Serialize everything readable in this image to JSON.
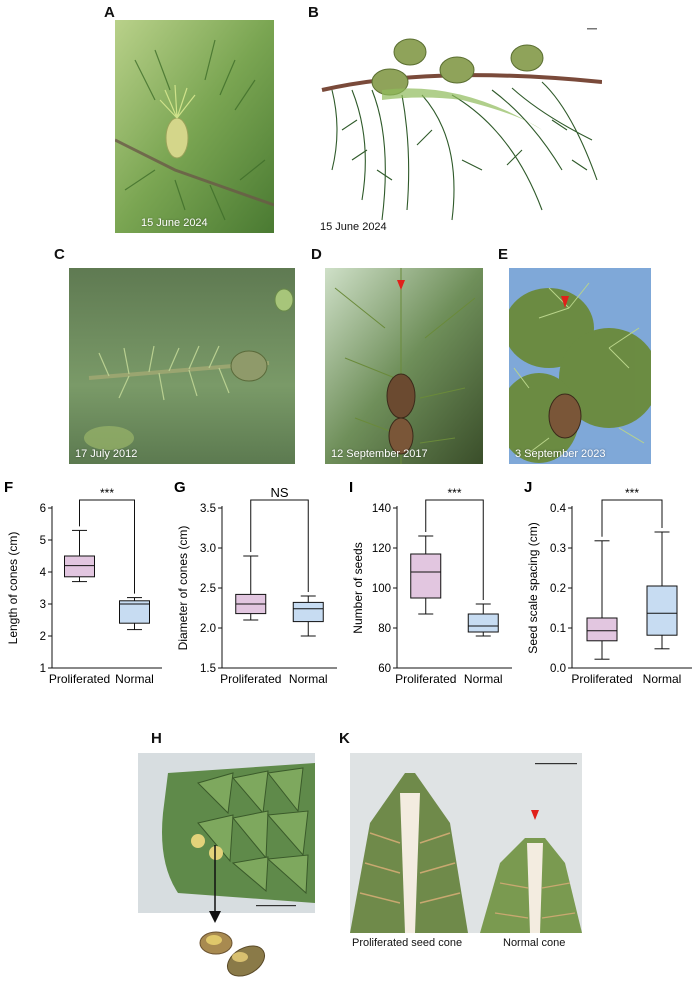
{
  "panels": {
    "A": {
      "letter": "A",
      "date": "15 June 2024"
    },
    "B": {
      "letter": "B",
      "date": "15 June 2024"
    },
    "C": {
      "letter": "C",
      "date": "17 July 2012"
    },
    "D": {
      "letter": "D",
      "date": "12 September 2017"
    },
    "E": {
      "letter": "E",
      "date": "3 September 2023"
    },
    "H": {
      "letter": "H"
    },
    "K": {
      "letter": "K",
      "caption_left": "Proliferated seed cone",
      "caption_right": "Normal cone"
    }
  },
  "colors": {
    "proliferated_box": "#e2c6e0",
    "normal_box": "#c7dcf2",
    "arrowhead": "#e0201a",
    "foliage": "#6a9a4a"
  },
  "chart_data": [
    {
      "type": "box",
      "panel": "F",
      "categories": [
        "Proliferated",
        "Normal"
      ],
      "ylabel": "Length of cones (cm)",
      "ylim": [
        1,
        6
      ],
      "yticks": [
        "1",
        "2",
        "3",
        "4",
        "5",
        "6"
      ],
      "significance": "***",
      "series": [
        {
          "min": 3.7,
          "q1": 3.85,
          "median": 4.2,
          "q3": 4.5,
          "max": 5.3
        },
        {
          "min": 2.2,
          "q1": 2.4,
          "median": 3.0,
          "q3": 3.1,
          "max": 3.2
        }
      ]
    },
    {
      "type": "box",
      "panel": "G",
      "categories": [
        "Proliferated",
        "Normal"
      ],
      "ylabel": "Diameter of cones (cm)",
      "ylim": [
        1.5,
        3.5
      ],
      "yticks": [
        "1.5",
        "2.0",
        "2.5",
        "3.0",
        "3.5"
      ],
      "significance": "NS",
      "series": [
        {
          "min": 2.1,
          "q1": 2.18,
          "median": 2.3,
          "q3": 2.42,
          "max": 2.9
        },
        {
          "min": 1.9,
          "q1": 2.08,
          "median": 2.24,
          "q3": 2.32,
          "max": 2.4
        }
      ]
    },
    {
      "type": "box",
      "panel": "I",
      "categories": [
        "Proliferated",
        "Normal"
      ],
      "ylabel": "Number of seeds",
      "ylim": [
        60,
        140
      ],
      "yticks": [
        "60",
        "80",
        "100",
        "120",
        "140"
      ],
      "significance": "***",
      "series": [
        {
          "min": 87,
          "q1": 95,
          "median": 108,
          "q3": 117,
          "max": 126
        },
        {
          "min": 76,
          "q1": 78,
          "median": 81,
          "q3": 87,
          "max": 92
        }
      ]
    },
    {
      "type": "box",
      "panel": "J",
      "categories": [
        "Proliferated",
        "Normal"
      ],
      "ylabel": "Seed scale spacing (cm)",
      "ylim": [
        0,
        0.4
      ],
      "yticks": [
        "0.0",
        "0.1",
        "0.2",
        "0.3",
        "0.4"
      ],
      "significance": "***",
      "series": [
        {
          "min": 0.022,
          "q1": 0.068,
          "median": 0.093,
          "q3": 0.125,
          "max": 0.318
        },
        {
          "min": 0.048,
          "q1": 0.082,
          "median": 0.137,
          "q3": 0.205,
          "max": 0.34
        }
      ]
    }
  ]
}
